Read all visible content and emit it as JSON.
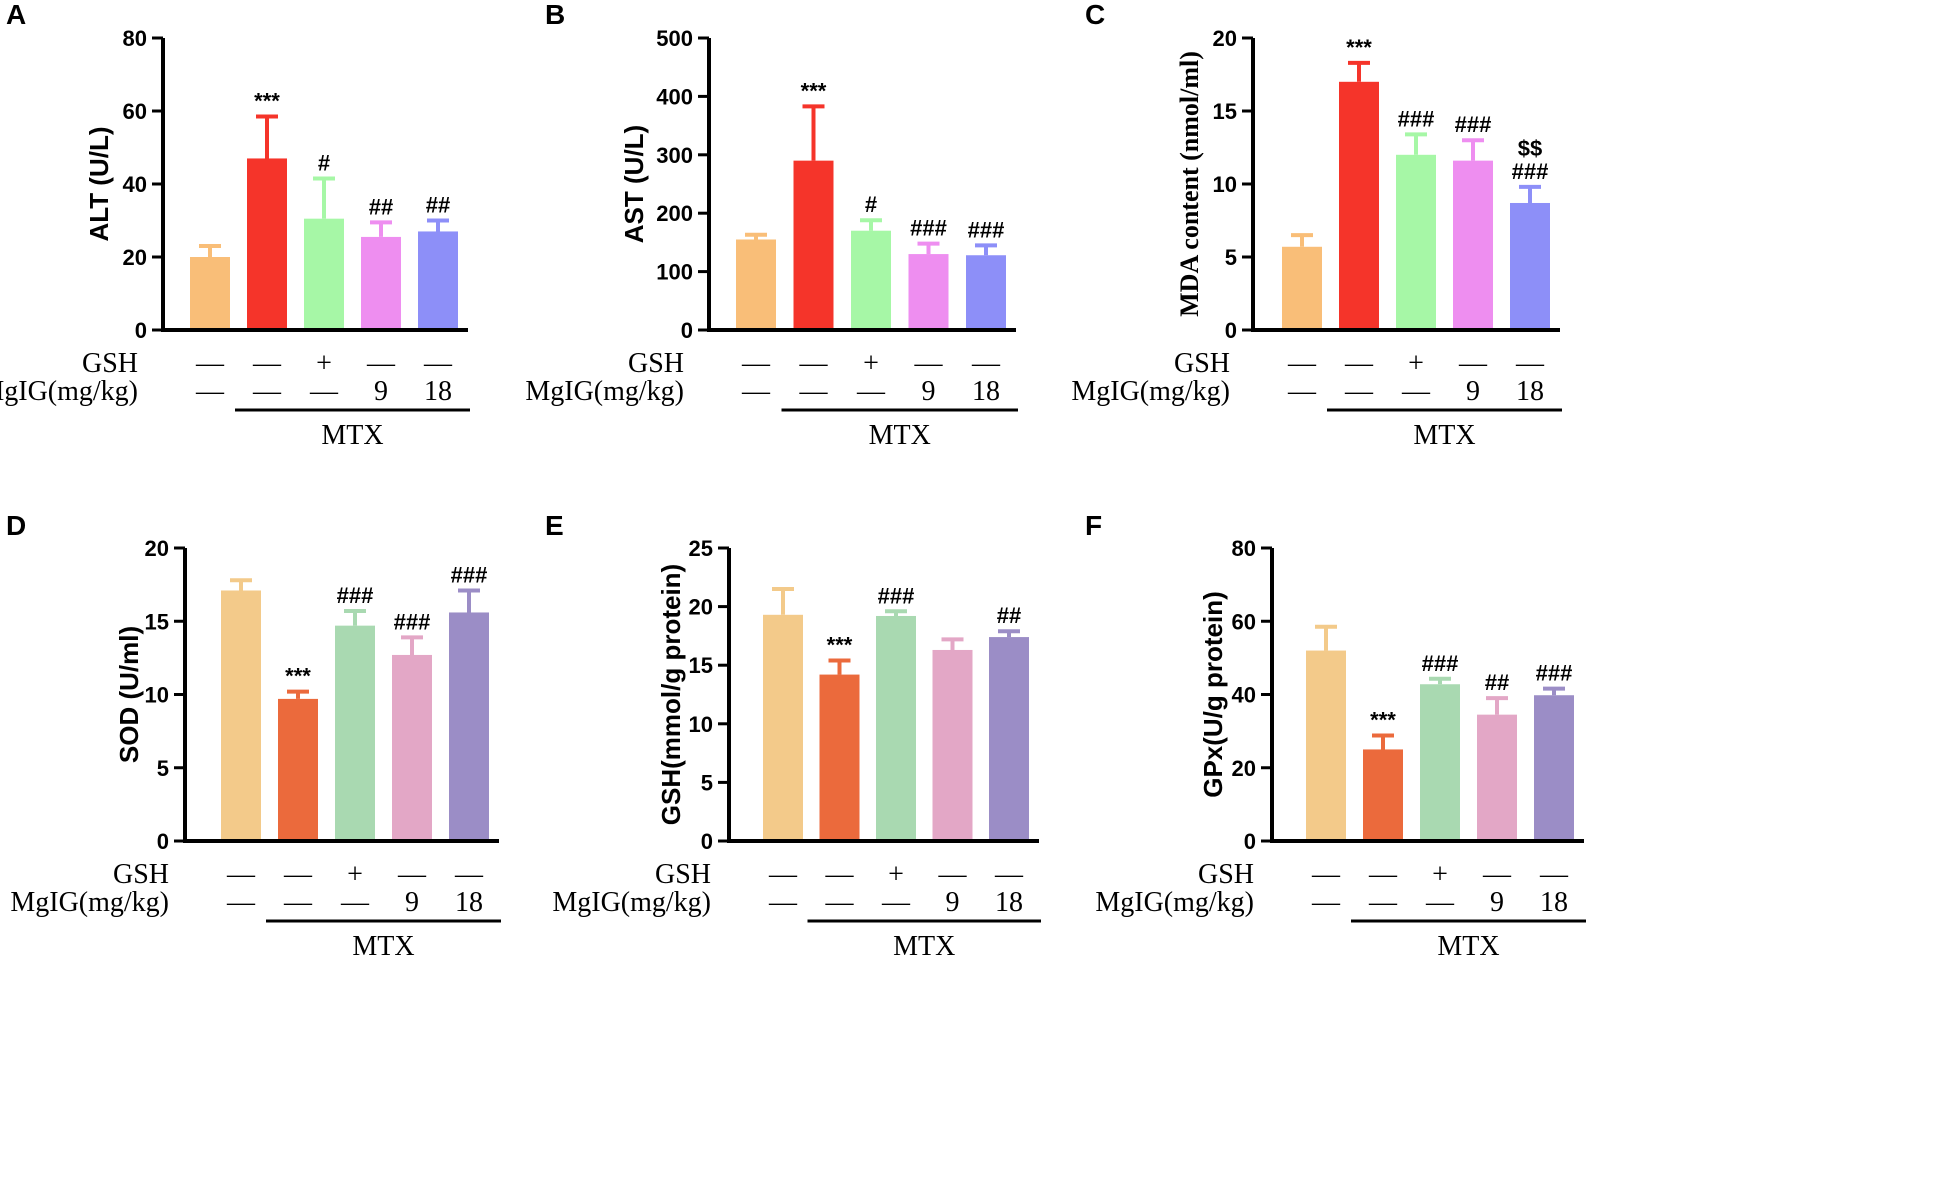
{
  "treatment_rows": {
    "gsh_label": "GSH",
    "mglg_label": "MgIG(mg/kg)",
    "gsh_marks": [
      "—",
      "—",
      "+",
      "—",
      "—"
    ],
    "mglg_marks": [
      "—",
      "—",
      "—",
      "9",
      "18"
    ],
    "group_label": "MTX"
  },
  "chart_data": [
    {
      "id": "A",
      "panel": "A",
      "type": "bar",
      "ylabel": "ALT (U/L)",
      "ylim": [
        0,
        80
      ],
      "yticks": [
        0,
        20,
        40,
        60,
        80
      ],
      "ytick_labels": [
        "0",
        "20",
        "40",
        "60",
        "80"
      ],
      "values": [
        20,
        47,
        30.5,
        25.5,
        27
      ],
      "errors": [
        3,
        11.5,
        11,
        4,
        3
      ],
      "annotations": [
        "",
        "***",
        "#",
        "##",
        "##"
      ],
      "colors": [
        "#F9BE78",
        "#F5342A",
        "#A6F7A6",
        "#EE8EF0",
        "#8D8FF8"
      ]
    },
    {
      "id": "B",
      "panel": "B",
      "type": "bar",
      "ylabel": "AST (U/L)",
      "ylim": [
        0,
        500
      ],
      "yticks": [
        0,
        100,
        200,
        300,
        400,
        500
      ],
      "ytick_labels": [
        "0",
        "100",
        "200",
        "300",
        "400",
        "500"
      ],
      "values": [
        155,
        290,
        170,
        130,
        128
      ],
      "errors": [
        8,
        93,
        18,
        18,
        17
      ],
      "annotations": [
        "",
        "***",
        "#",
        "###",
        "###"
      ],
      "colors": [
        "#F9BE78",
        "#F5342A",
        "#A6F7A6",
        "#EE8EF0",
        "#8D8FF8"
      ]
    },
    {
      "id": "C",
      "panel": "C",
      "type": "bar",
      "ylabel": "MDA content (nmol/ml)",
      "ylim": [
        0,
        20
      ],
      "yticks": [
        0,
        5,
        10,
        15,
        20
      ],
      "ytick_labels": [
        "0",
        "5",
        "10",
        "15",
        "20"
      ],
      "values": [
        5.7,
        17,
        12,
        11.6,
        8.7
      ],
      "errors": [
        0.8,
        1.3,
        1.4,
        1.4,
        1.1
      ],
      "annotations": [
        "",
        "***",
        "###",
        "###",
        "$$\n###"
      ],
      "colors": [
        "#F9BE78",
        "#F5342A",
        "#A6F7A6",
        "#EE8EF0",
        "#8D8FF8"
      ]
    },
    {
      "id": "D",
      "panel": "D",
      "type": "bar",
      "ylabel": "SOD (U/ml)",
      "ylim": [
        0,
        20
      ],
      "yticks": [
        0,
        5,
        10,
        15,
        20
      ],
      "ytick_labels": [
        "0",
        "5",
        "10",
        "15",
        "20"
      ],
      "values": [
        17.1,
        9.7,
        14.7,
        12.7,
        15.6
      ],
      "errors": [
        0.7,
        0.5,
        1.0,
        1.2,
        1.5
      ],
      "annotations": [
        "",
        "***",
        "###",
        "###",
        "###"
      ],
      "colors": [
        "#F3CA8A",
        "#EB6A3C",
        "#A9D9B1",
        "#E3A7C6",
        "#9B8DC6"
      ]
    },
    {
      "id": "E",
      "panel": "E",
      "type": "bar",
      "ylabel": "GSH(mmol/g protein)",
      "ylim": [
        0,
        25
      ],
      "yticks": [
        0,
        5,
        10,
        15,
        20,
        25
      ],
      "ytick_labels": [
        "0",
        "5",
        "10",
        "15",
        "20",
        "25"
      ],
      "values": [
        19.3,
        14.2,
        19.2,
        16.3,
        17.4
      ],
      "errors": [
        2.2,
        1.2,
        0.4,
        0.9,
        0.5
      ],
      "annotations": [
        "",
        "***",
        "###",
        "",
        "##"
      ],
      "colors": [
        "#F3CA8A",
        "#EB6A3C",
        "#A9D9B1",
        "#E3A7C6",
        "#9B8DC6"
      ]
    },
    {
      "id": "F",
      "panel": "F",
      "type": "bar",
      "ylabel": "GPx(U/g protein)",
      "ylim": [
        0,
        80
      ],
      "yticks": [
        0,
        20,
        40,
        60,
        80
      ],
      "ytick_labels": [
        "0",
        "20",
        "40",
        "60",
        "80"
      ],
      "values": [
        52,
        25,
        42.8,
        34.5,
        39.8
      ],
      "errors": [
        6.5,
        3.8,
        1.5,
        4.5,
        1.8
      ],
      "annotations": [
        "",
        "***",
        "###",
        "##",
        "###"
      ],
      "colors": [
        "#F3CA8A",
        "#EB6A3C",
        "#A9D9B1",
        "#E3A7C6",
        "#9B8DC6"
      ]
    }
  ]
}
